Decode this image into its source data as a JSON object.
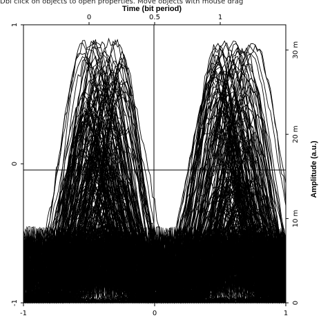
{
  "hint_text": "Dbl click on objects to open properties. Move objects with mouse drag",
  "chart_data": {
    "type": "line",
    "chart_kind": "eye-diagram",
    "title": "Time (bit period)",
    "xlabel_top": "Time (bit period)",
    "ylabel_right": "Amplitude (a.u.)",
    "x_bottom": {
      "range": [
        -1,
        1
      ],
      "ticks": [
        "-1",
        "0",
        "1"
      ]
    },
    "x_top": {
      "range": [
        -0.5,
        1.5
      ],
      "ticks": [
        "0",
        "0.5",
        "1"
      ]
    },
    "y_left": {
      "range": [
        -1,
        1
      ],
      "ticks": [
        "1",
        "0",
        "-1"
      ]
    },
    "y_right": {
      "range": [
        0,
        0.033
      ],
      "units": "m",
      "ticks": [
        "30 m",
        "20 m",
        "10 m",
        "0"
      ],
      "tick_values": [
        0.03,
        0.02,
        0.01,
        0
      ]
    },
    "grid": false,
    "crosshair": {
      "x": 0,
      "y": 0
    },
    "series_color": "#000000",
    "peak_amplitude_au": 1.0,
    "baseline_amplitude_au": -1.0
  }
}
